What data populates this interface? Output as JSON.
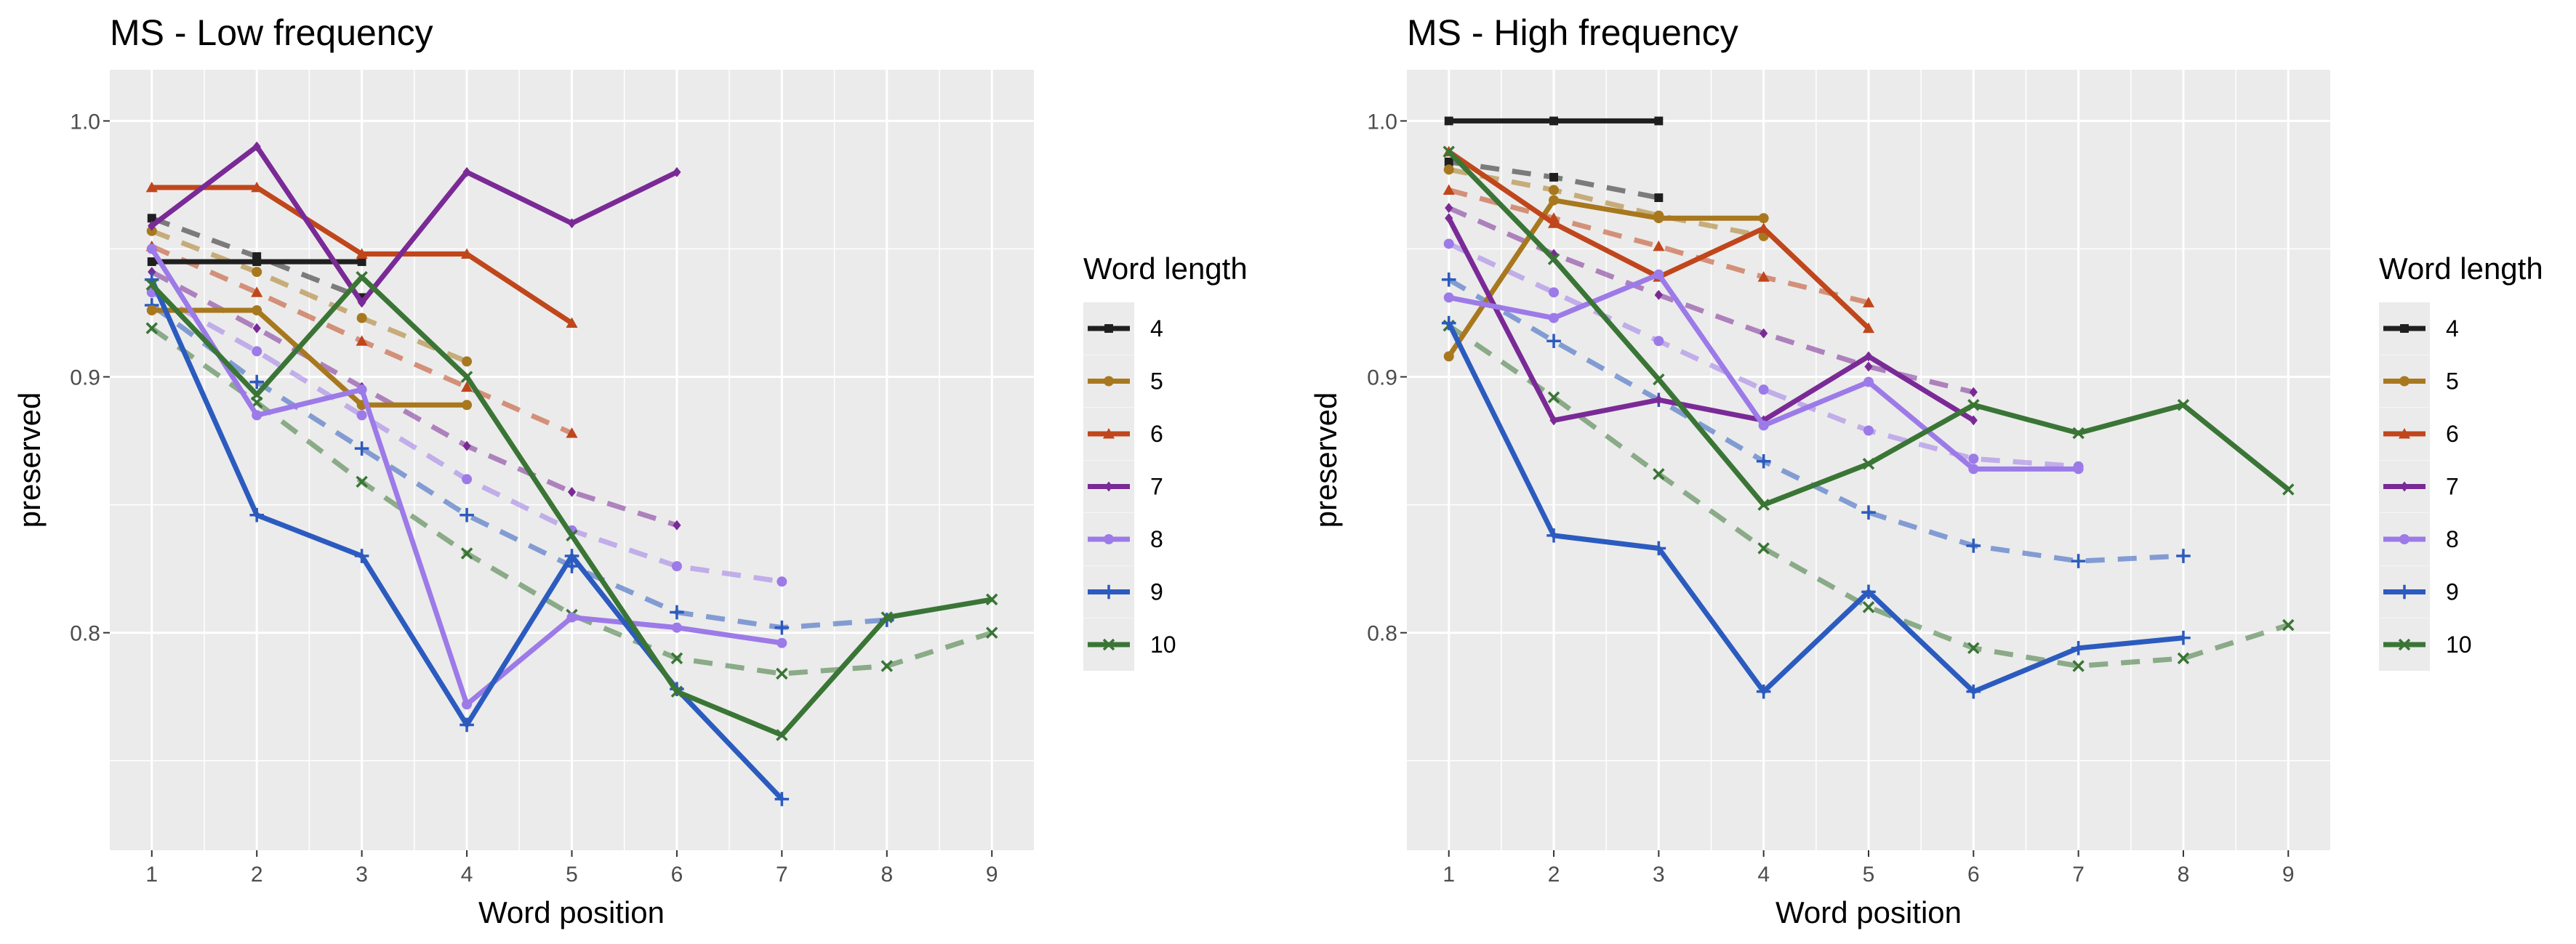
{
  "chart_data": [
    {
      "type": "line",
      "title": "MS - Low frequency",
      "xlabel": "Word position",
      "ylabel": "preserved",
      "xlim": [
        0.6,
        9.4
      ],
      "ylim": [
        0.715,
        1.02
      ],
      "x_ticks": [
        1,
        2,
        3,
        4,
        5,
        6,
        7,
        8,
        9
      ],
      "y_ticks": [
        0.8,
        0.9,
        1.0
      ],
      "y_tick_labels": [
        "0.8",
        "0.9",
        "1.0"
      ],
      "grid": true,
      "legend_title": "Word length",
      "legend_position": "right",
      "line_styles": {
        "solid": "observed",
        "dashed": "model"
      },
      "series": [
        {
          "name": "4",
          "color": "#1f1f1f",
          "marker": "square",
          "solid": [
            [
              1,
              0.945
            ],
            [
              2,
              0.945
            ],
            [
              3,
              0.945
            ]
          ],
          "dashed": [
            [
              1,
              0.962
            ],
            [
              2,
              0.947
            ],
            [
              3,
              0.931
            ]
          ]
        },
        {
          "name": "5",
          "color": "#a8781e",
          "marker": "circle",
          "solid": [
            [
              1,
              0.926
            ],
            [
              2,
              0.926
            ],
            [
              3,
              0.889
            ],
            [
              4,
              0.889
            ]
          ],
          "dashed": [
            [
              1,
              0.957
            ],
            [
              2,
              0.941
            ],
            [
              3,
              0.923
            ],
            [
              4,
              0.906
            ]
          ]
        },
        {
          "name": "6",
          "color": "#c0461c",
          "marker": "triangle",
          "solid": [
            [
              1,
              0.974
            ],
            [
              2,
              0.974
            ],
            [
              3,
              0.948
            ],
            [
              4,
              0.948
            ],
            [
              5,
              0.921
            ]
          ],
          "dashed": [
            [
              1,
              0.951
            ],
            [
              2,
              0.933
            ],
            [
              3,
              0.914
            ],
            [
              4,
              0.896
            ],
            [
              5,
              0.878
            ]
          ]
        },
        {
          "name": "7",
          "color": "#7a2a96",
          "marker": "diamond",
          "solid": [
            [
              1,
              0.959
            ],
            [
              2,
              0.99
            ],
            [
              3,
              0.929
            ],
            [
              4,
              0.98
            ],
            [
              5,
              0.96
            ],
            [
              6,
              0.98
            ]
          ],
          "dashed": [
            [
              1,
              0.941
            ],
            [
              2,
              0.919
            ],
            [
              3,
              0.896
            ],
            [
              4,
              0.873
            ],
            [
              5,
              0.855
            ],
            [
              6,
              0.842
            ]
          ]
        },
        {
          "name": "8",
          "color": "#9c7ae8",
          "marker": "circle",
          "solid": [
            [
              1,
              0.95
            ],
            [
              2,
              0.885
            ],
            [
              3,
              0.895
            ],
            [
              4,
              0.772
            ],
            [
              5,
              0.806
            ],
            [
              6,
              0.802
            ],
            [
              7,
              0.796
            ]
          ],
          "dashed": [
            [
              1,
              0.933
            ],
            [
              2,
              0.91
            ],
            [
              3,
              0.885
            ],
            [
              4,
              0.86
            ],
            [
              5,
              0.84
            ],
            [
              6,
              0.826
            ],
            [
              7,
              0.82
            ]
          ]
        },
        {
          "name": "9",
          "color": "#2c5bbf",
          "marker": "plus",
          "solid": [
            [
              1,
              0.938
            ],
            [
              2,
              0.846
            ],
            [
              3,
              0.83
            ],
            [
              4,
              0.764
            ],
            [
              5,
              0.83
            ],
            [
              6,
              0.778
            ],
            [
              7,
              0.735
            ]
          ],
          "dashed": [
            [
              1,
              0.928
            ],
            [
              2,
              0.898
            ],
            [
              3,
              0.872
            ],
            [
              4,
              0.846
            ],
            [
              5,
              0.826
            ],
            [
              6,
              0.808
            ],
            [
              7,
              0.802
            ],
            [
              8,
              0.805
            ]
          ]
        },
        {
          "name": "10",
          "color": "#3a7536",
          "marker": "cross",
          "solid": [
            [
              1,
              0.936
            ],
            [
              2,
              0.893
            ],
            [
              3,
              0.939
            ],
            [
              4,
              0.9
            ],
            [
              5,
              0.838
            ],
            [
              6,
              0.777
            ],
            [
              7,
              0.76
            ],
            [
              8,
              0.806
            ],
            [
              9,
              0.813
            ]
          ],
          "dashed": [
            [
              1,
              0.919
            ],
            [
              2,
              0.89
            ],
            [
              3,
              0.859
            ],
            [
              4,
              0.831
            ],
            [
              5,
              0.807
            ],
            [
              6,
              0.79
            ],
            [
              7,
              0.784
            ],
            [
              8,
              0.787
            ],
            [
              9,
              0.8
            ]
          ]
        }
      ]
    },
    {
      "type": "line",
      "title": "MS - High frequency",
      "xlabel": "Word position",
      "ylabel": "preserved",
      "xlim": [
        0.6,
        9.4
      ],
      "ylim": [
        0.715,
        1.02
      ],
      "x_ticks": [
        1,
        2,
        3,
        4,
        5,
        6,
        7,
        8,
        9
      ],
      "y_ticks": [
        0.8,
        0.9,
        1.0
      ],
      "y_tick_labels": [
        "0.8",
        "0.9",
        "1.0"
      ],
      "grid": true,
      "legend_title": "Word length",
      "legend_position": "right",
      "line_styles": {
        "solid": "observed",
        "dashed": "model"
      },
      "series": [
        {
          "name": "4",
          "color": "#1f1f1f",
          "marker": "square",
          "solid": [
            [
              1,
              1.0
            ],
            [
              2,
              1.0
            ],
            [
              3,
              1.0
            ]
          ],
          "dashed": [
            [
              1,
              0.984
            ],
            [
              2,
              0.978
            ],
            [
              3,
              0.97
            ]
          ]
        },
        {
          "name": "5",
          "color": "#a8781e",
          "marker": "circle",
          "solid": [
            [
              1,
              0.908
            ],
            [
              2,
              0.969
            ],
            [
              3,
              0.962
            ],
            [
              4,
              0.962
            ]
          ],
          "dashed": [
            [
              1,
              0.981
            ],
            [
              2,
              0.973
            ],
            [
              3,
              0.963
            ],
            [
              4,
              0.955
            ]
          ]
        },
        {
          "name": "6",
          "color": "#c0461c",
          "marker": "triangle",
          "solid": [
            [
              1,
              0.988
            ],
            [
              2,
              0.96
            ],
            [
              3,
              0.939
            ],
            [
              4,
              0.958
            ],
            [
              5,
              0.919
            ]
          ],
          "dashed": [
            [
              1,
              0.973
            ],
            [
              2,
              0.962
            ],
            [
              3,
              0.951
            ],
            [
              4,
              0.939
            ],
            [
              5,
              0.929
            ]
          ]
        },
        {
          "name": "7",
          "color": "#7a2a96",
          "marker": "diamond",
          "solid": [
            [
              1,
              0.962
            ],
            [
              2,
              0.883
            ],
            [
              3,
              0.891
            ],
            [
              4,
              0.883
            ],
            [
              5,
              0.908
            ],
            [
              6,
              0.883
            ]
          ],
          "dashed": [
            [
              1,
              0.966
            ],
            [
              2,
              0.948
            ],
            [
              3,
              0.932
            ],
            [
              4,
              0.917
            ],
            [
              5,
              0.904
            ],
            [
              6,
              0.894
            ]
          ]
        },
        {
          "name": "8",
          "color": "#9c7ae8",
          "marker": "circle",
          "solid": [
            [
              1,
              0.931
            ],
            [
              2,
              0.923
            ],
            [
              3,
              0.94
            ],
            [
              4,
              0.881
            ],
            [
              5,
              0.898
            ],
            [
              6,
              0.864
            ],
            [
              7,
              0.864
            ]
          ],
          "dashed": [
            [
              1,
              0.952
            ],
            [
              2,
              0.933
            ],
            [
              3,
              0.914
            ],
            [
              4,
              0.895
            ],
            [
              5,
              0.879
            ],
            [
              6,
              0.868
            ],
            [
              7,
              0.865
            ]
          ]
        },
        {
          "name": "9",
          "color": "#2c5bbf",
          "marker": "plus",
          "solid": [
            [
              1,
              0.921
            ],
            [
              2,
              0.838
            ],
            [
              3,
              0.833
            ],
            [
              4,
              0.777
            ],
            [
              5,
              0.816
            ],
            [
              6,
              0.777
            ],
            [
              7,
              0.794
            ],
            [
              8,
              0.798
            ]
          ],
          "dashed": [
            [
              1,
              0.938
            ],
            [
              2,
              0.914
            ],
            [
              3,
              0.891
            ],
            [
              4,
              0.867
            ],
            [
              5,
              0.847
            ],
            [
              6,
              0.834
            ],
            [
              7,
              0.828
            ],
            [
              8,
              0.83
            ]
          ]
        },
        {
          "name": "10",
          "color": "#3a7536",
          "marker": "cross",
          "solid": [
            [
              1,
              0.988
            ],
            [
              2,
              0.946
            ],
            [
              3,
              0.899
            ],
            [
              4,
              0.85
            ],
            [
              5,
              0.866
            ],
            [
              6,
              0.889
            ],
            [
              7,
              0.878
            ],
            [
              8,
              0.889
            ],
            [
              9,
              0.856
            ]
          ],
          "dashed": [
            [
              1,
              0.92
            ],
            [
              2,
              0.892
            ],
            [
              3,
              0.862
            ],
            [
              4,
              0.833
            ],
            [
              5,
              0.81
            ],
            [
              6,
              0.794
            ],
            [
              7,
              0.787
            ],
            [
              8,
              0.79
            ],
            [
              9,
              0.803
            ]
          ]
        }
      ]
    }
  ]
}
